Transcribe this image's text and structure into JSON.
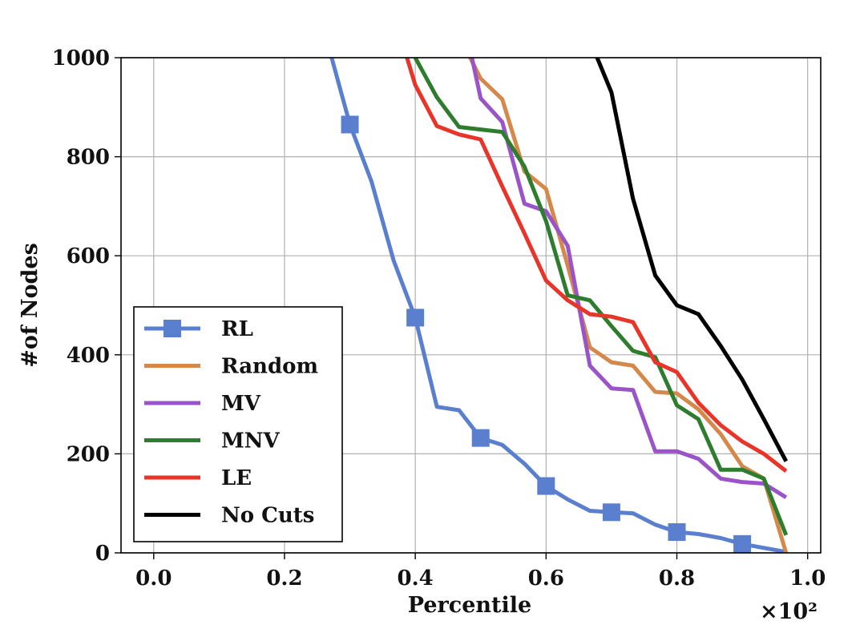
{
  "chart_data": {
    "type": "line",
    "xlabel": "Percentile",
    "ylabel": "#of Nodes",
    "x_multiplier_label": "×10²",
    "xlim": [
      -0.05,
      1.02
    ],
    "ylim": [
      0,
      1000
    ],
    "xticks": [
      "0.0",
      "0.2",
      "0.4",
      "0.6",
      "0.8",
      "1.0"
    ],
    "xtick_values": [
      0.0,
      0.2,
      0.4,
      0.6,
      0.8,
      1.0
    ],
    "yticks": [
      "0",
      "200",
      "400",
      "600",
      "800",
      "1000"
    ],
    "ytick_values": [
      0,
      200,
      400,
      600,
      800,
      1000
    ],
    "grid": true,
    "legend_position": "lower-left",
    "series": [
      {
        "name": "RL",
        "color": "#5b7fcf",
        "marker": "square",
        "markers_at": [
          0.3,
          0.4,
          0.5,
          0.6,
          0.7,
          0.8,
          0.9
        ],
        "x": [
          0.27,
          0.3,
          0.333,
          0.367,
          0.4,
          0.433,
          0.467,
          0.5,
          0.533,
          0.567,
          0.6,
          0.633,
          0.667,
          0.7,
          0.733,
          0.767,
          0.8,
          0.833,
          0.867,
          0.9,
          0.933,
          0.967
        ],
        "y": [
          1010,
          865,
          750,
          590,
          475,
          295,
          288,
          232,
          218,
          180,
          135,
          108,
          85,
          82,
          80,
          57,
          42,
          38,
          30,
          18,
          10,
          2
        ]
      },
      {
        "name": "Random",
        "color": "#d4894a",
        "x": [
          0.48,
          0.5,
          0.533,
          0.567,
          0.6,
          0.633,
          0.667,
          0.7,
          0.733,
          0.767,
          0.8,
          0.833,
          0.867,
          0.9,
          0.933,
          0.967
        ],
        "y": [
          1010,
          958,
          916,
          770,
          735,
          580,
          415,
          385,
          378,
          325,
          322,
          290,
          240,
          175,
          150,
          0
        ]
      },
      {
        "name": "MV",
        "color": "#9a54c8",
        "x": [
          0.485,
          0.5,
          0.533,
          0.567,
          0.6,
          0.633,
          0.667,
          0.7,
          0.733,
          0.767,
          0.8,
          0.833,
          0.867,
          0.9,
          0.933,
          0.967
        ],
        "y": [
          1010,
          918,
          870,
          705,
          690,
          620,
          378,
          332,
          329,
          205,
          205,
          190,
          150,
          143,
          140,
          112
        ]
      },
      {
        "name": "MNV",
        "color": "#2e7d2e",
        "x": [
          0.4,
          0.433,
          0.467,
          0.5,
          0.533,
          0.567,
          0.6,
          0.633,
          0.667,
          0.7,
          0.733,
          0.767,
          0.8,
          0.833,
          0.867,
          0.9,
          0.933,
          0.967
        ],
        "y": [
          1000,
          920,
          860,
          855,
          850,
          780,
          670,
          520,
          510,
          458,
          408,
          395,
          298,
          270,
          168,
          168,
          150,
          36
        ]
      },
      {
        "name": "LE",
        "color": "#e8352a",
        "x": [
          0.385,
          0.4,
          0.433,
          0.467,
          0.5,
          0.533,
          0.567,
          0.6,
          0.633,
          0.667,
          0.7,
          0.733,
          0.767,
          0.8,
          0.833,
          0.867,
          0.9,
          0.933,
          0.967
        ],
        "y": [
          1010,
          945,
          862,
          845,
          835,
          740,
          645,
          550,
          510,
          482,
          477,
          466,
          385,
          365,
          303,
          258,
          225,
          200,
          165
        ]
      },
      {
        "name": "No Cuts",
        "color": "#000000",
        "x": [
          0.675,
          0.7,
          0.733,
          0.767,
          0.8,
          0.833,
          0.867,
          0.9,
          0.933,
          0.967
        ],
        "y": [
          1010,
          930,
          715,
          560,
          500,
          482,
          418,
          350,
          270,
          185
        ]
      }
    ]
  }
}
